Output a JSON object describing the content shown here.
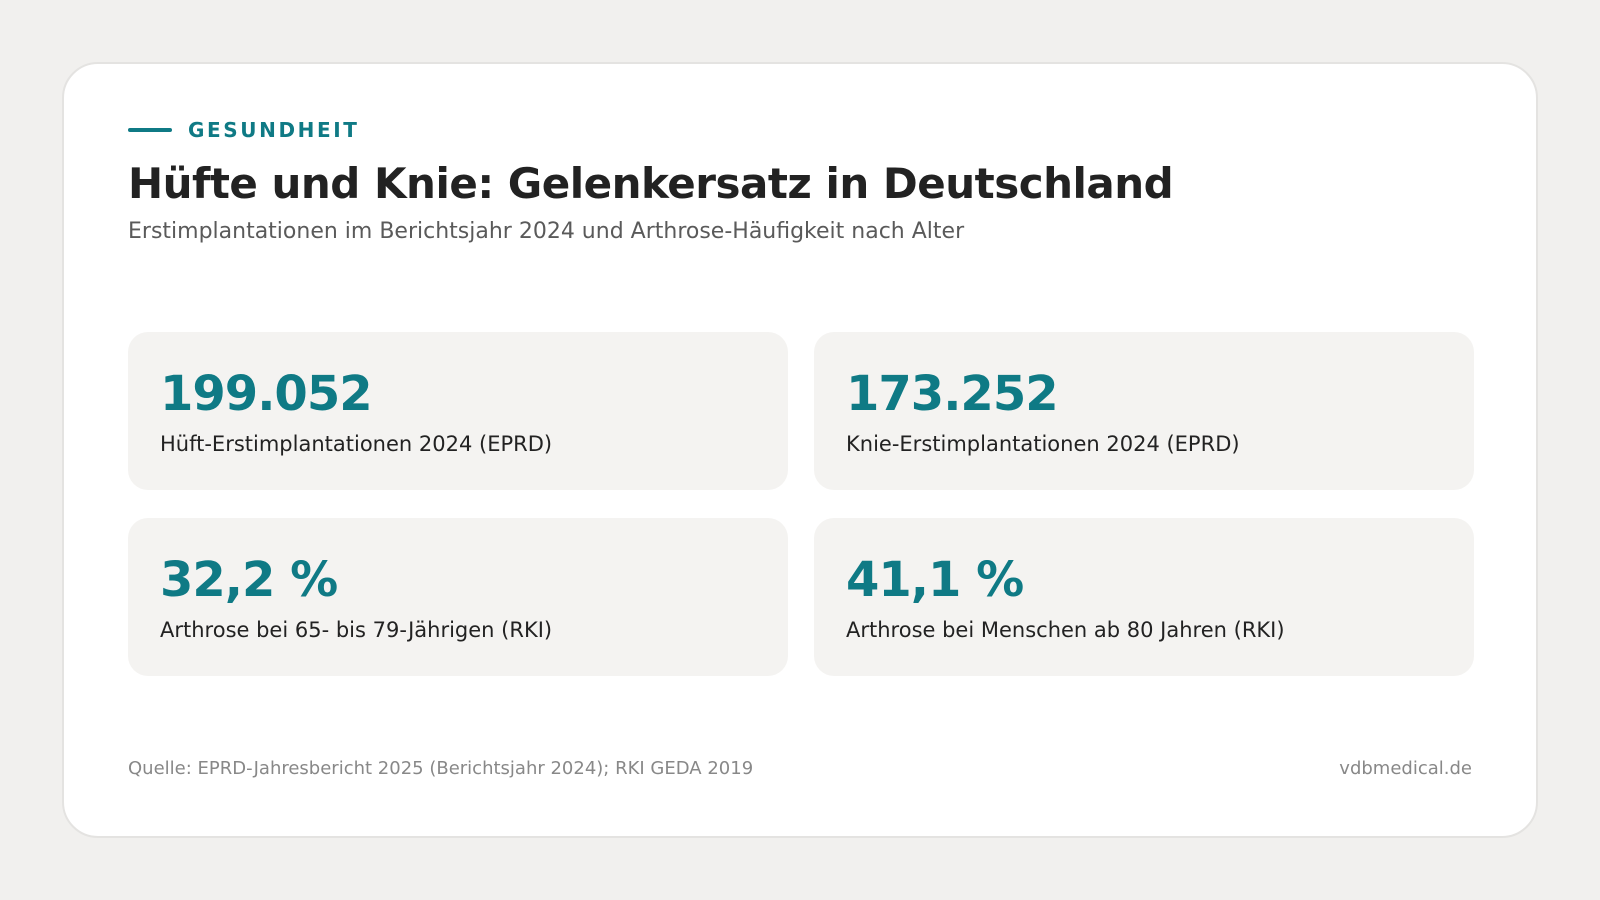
{
  "header": {
    "eyebrow": "GESUNDHEIT",
    "title": "Hüfte und Knie: Gelenkersatz in Deutschland",
    "subtitle": "Erstimplantationen im Berichtsjahr 2024 und Arthrose-Häufigkeit nach Alter"
  },
  "stats": [
    {
      "value": "199.052",
      "label": "Hüft-Erstimplantationen 2024 (EPRD)"
    },
    {
      "value": "173.252",
      "label": "Knie-Erstimplantationen 2024 (EPRD)"
    },
    {
      "value": "32,2 %",
      "label": "Arthrose bei 65- bis 79-Jährigen (RKI)"
    },
    {
      "value": "41,1 %",
      "label": "Arthrose bei Menschen ab 80 Jahren (RKI)"
    }
  ],
  "footer": {
    "source": "Quelle: EPRD-Jahresbericht 2025 (Berichtsjahr 2024); RKI GEDA 2019",
    "brand": "vdbmedical.de"
  },
  "colors": {
    "accent": "#0f7a85",
    "background": "#f1f0ee",
    "card": "#ffffff",
    "stat_background": "#f4f3f1"
  }
}
